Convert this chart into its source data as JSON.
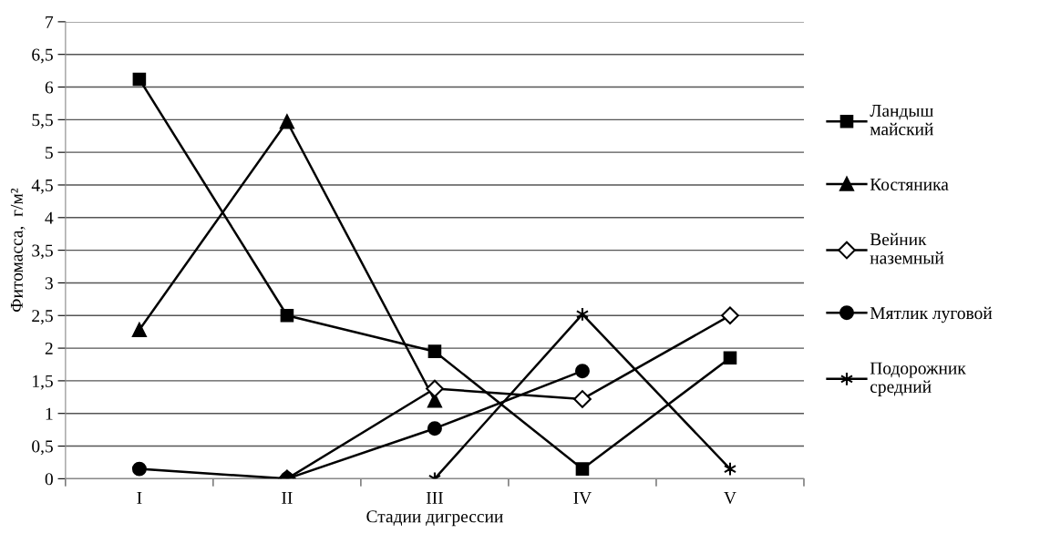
{
  "chart_data": {
    "type": "line",
    "xlabel": "Стадии дигрессии",
    "ylabel": "Фитомасса,  г/м²",
    "categories": [
      "I",
      "II",
      "III",
      "IV",
      "V"
    ],
    "ylim": [
      0,
      7
    ],
    "yticks": [
      0,
      {
        "value": 0.5,
        "label": "0,5"
      },
      1,
      {
        "value": 1.5,
        "label": "1,5"
      },
      2,
      {
        "value": 2.5,
        "label": "2,5"
      },
      3,
      {
        "value": 3.5,
        "label": "3,5"
      },
      4,
      {
        "value": 4.5,
        "label": "4,5"
      },
      5,
      {
        "value": 5.5,
        "label": "5,5"
      },
      6,
      {
        "value": 6.5,
        "label": "6,5"
      },
      7
    ],
    "grid": "y",
    "legend": "right",
    "series": [
      {
        "name": "Ландыш\nмайский",
        "color": "#000000",
        "marker": "square",
        "values": [
          6.12,
          2.5,
          1.95,
          0.15,
          1.85
        ]
      },
      {
        "name": "Костяника",
        "color": "#000000",
        "marker": "triangle",
        "values": [
          2.28,
          5.47,
          1.2,
          null,
          null
        ]
      },
      {
        "name": "Вейник\nназемный",
        "color": "#000000",
        "marker": "diamond",
        "values": [
          null,
          0,
          1.38,
          1.22,
          2.5
        ]
      },
      {
        "name": "Мятлик луговой",
        "color": "#000000",
        "marker": "circle",
        "values": [
          0.15,
          0,
          0.77,
          1.65,
          null
        ]
      },
      {
        "name": "Подорожник\nсредний",
        "color": "#000000",
        "marker": "cross",
        "values": [
          null,
          null,
          0,
          2.52,
          0.15
        ]
      }
    ]
  }
}
